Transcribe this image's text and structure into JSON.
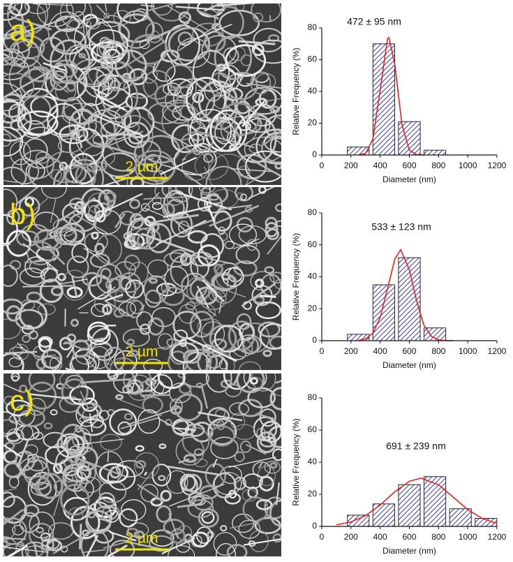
{
  "chart_data": [
    {
      "type": "bar",
      "panel_label": "a)",
      "scale_bar": "2 µm",
      "annotation": "472 ± 95 nm",
      "x_label": "Diameter (nm)",
      "y_label": "Relative Frequency (%)",
      "x": [
        250,
        425,
        600,
        775
      ],
      "values": [
        5,
        70,
        21,
        3
      ],
      "color": "#3a3aa8",
      "fit": {
        "color": "#e8201c",
        "x": [
          250,
          300,
          350,
          400,
          450,
          460,
          500,
          550,
          600,
          650,
          700
        ],
        "values": [
          0,
          1,
          10,
          41,
          73,
          74,
          57,
          19,
          3,
          0.2,
          0
        ]
      },
      "xlim": [
        0,
        1200
      ],
      "xticks": [
        0,
        200,
        400,
        600,
        800,
        1000,
        1200
      ],
      "ylim": [
        0,
        80
      ],
      "yticks": [
        0,
        20,
        40,
        60,
        80
      ]
    },
    {
      "type": "bar",
      "panel_label": "b)",
      "scale_bar": "2 µm",
      "annotation": "533 ± 123 nm",
      "x_label": "Diameter (nm)",
      "y_label": "Relative Frequency (%)",
      "x": [
        250,
        425,
        600,
        775
      ],
      "values": [
        4,
        35,
        52,
        8
      ],
      "color": "#3a3aa8",
      "fit": {
        "color": "#e8201c",
        "x": [
          250,
          300,
          350,
          400,
          450,
          500,
          540,
          600,
          650,
          700,
          750,
          800,
          850,
          900
        ],
        "values": [
          0.2,
          1.1,
          4.7,
          14.7,
          32.5,
          51,
          57,
          44.4,
          24.7,
          9.7,
          2.7,
          0.5,
          0.1,
          0
        ]
      },
      "xlim": [
        0,
        1200
      ],
      "xticks": [
        0,
        200,
        400,
        600,
        800,
        1000,
        1200
      ],
      "ylim": [
        0,
        80
      ],
      "yticks": [
        0,
        20,
        40,
        60,
        80
      ]
    },
    {
      "type": "bar",
      "panel_label": "c)",
      "scale_bar": "2 µm",
      "annotation": "691 ± 239 nm",
      "x_label": "Diameter (nm)",
      "y_label": "Relative Frequency (%)",
      "x": [
        250,
        425,
        600,
        775,
        950,
        1125
      ],
      "values": [
        7,
        14,
        26,
        31,
        11,
        5
      ],
      "color": "#3a3aa8",
      "fit": {
        "color": "#e8201c",
        "x": [
          100,
          200,
          300,
          400,
          500,
          600,
          680,
          800,
          900,
          1000,
          1100,
          1200
        ],
        "values": [
          0.9,
          2.8,
          6.7,
          13.3,
          21.5,
          28.1,
          30,
          25.9,
          18.2,
          10.4,
          4.9,
          1.8
        ]
      },
      "xlim": [
        0,
        1200
      ],
      "xticks": [
        0,
        200,
        400,
        600,
        800,
        1000,
        1200
      ],
      "ylim": [
        0,
        80
      ],
      "yticks": [
        0,
        20,
        40,
        60,
        80
      ]
    }
  ]
}
